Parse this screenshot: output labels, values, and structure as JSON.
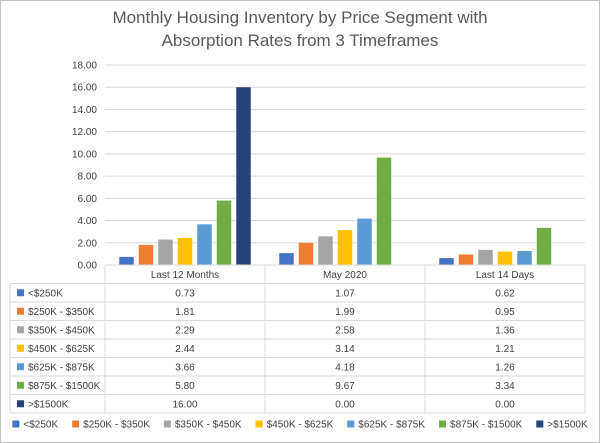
{
  "chart_data": {
    "type": "bar",
    "title": "Monthly Housing Inventory by Price Segment with Absorption Rates from 3 Timeframes",
    "title_lines": [
      "Monthly Housing Inventory by Price Segment with",
      "Absorption Rates from 3 Timeframes"
    ],
    "categories": [
      "Last 12 Months",
      "May 2020",
      "Last 14 Days"
    ],
    "ylim": [
      0,
      18
    ],
    "y_ticks": [
      "0.00",
      "2.00",
      "4.00",
      "6.00",
      "8.00",
      "10.00",
      "12.00",
      "14.00",
      "16.00",
      "18.00"
    ],
    "grid": true,
    "legend_position": "bottom",
    "data_table": true,
    "series": [
      {
        "name": "<$250K",
        "color": "#4472c4",
        "values": [
          0.73,
          1.07,
          0.62
        ],
        "labels": [
          "0.73",
          "1.07",
          "0.62"
        ]
      },
      {
        "name": "$250K - $350K",
        "color": "#ed7d31",
        "values": [
          1.81,
          1.99,
          0.95
        ],
        "labels": [
          "1.81",
          "1.99",
          "0.95"
        ]
      },
      {
        "name": "$350K - $450K",
        "color": "#a5a5a5",
        "values": [
          2.29,
          2.58,
          1.36
        ],
        "labels": [
          "2.29",
          "2.58",
          "1.36"
        ]
      },
      {
        "name": "$450K - $625K",
        "color": "#ffc000",
        "values": [
          2.44,
          3.14,
          1.21
        ],
        "labels": [
          "2.44",
          "3.14",
          "1.21"
        ]
      },
      {
        "name": "$625K - $875K",
        "color": "#5b9bd5",
        "values": [
          3.66,
          4.18,
          1.26
        ],
        "labels": [
          "3.66",
          "4.18",
          "1.26"
        ]
      },
      {
        "name": "$875K - $1500K",
        "color": "#70ad47",
        "values": [
          5.8,
          9.67,
          3.34
        ],
        "labels": [
          "5.80",
          "9.67",
          "3.34"
        ]
      },
      {
        "name": ">$1500K",
        "color": "#264478",
        "values": [
          16.0,
          0.0,
          0.0
        ],
        "labels": [
          "16.00",
          "0.00",
          "0.00"
        ]
      }
    ]
  }
}
